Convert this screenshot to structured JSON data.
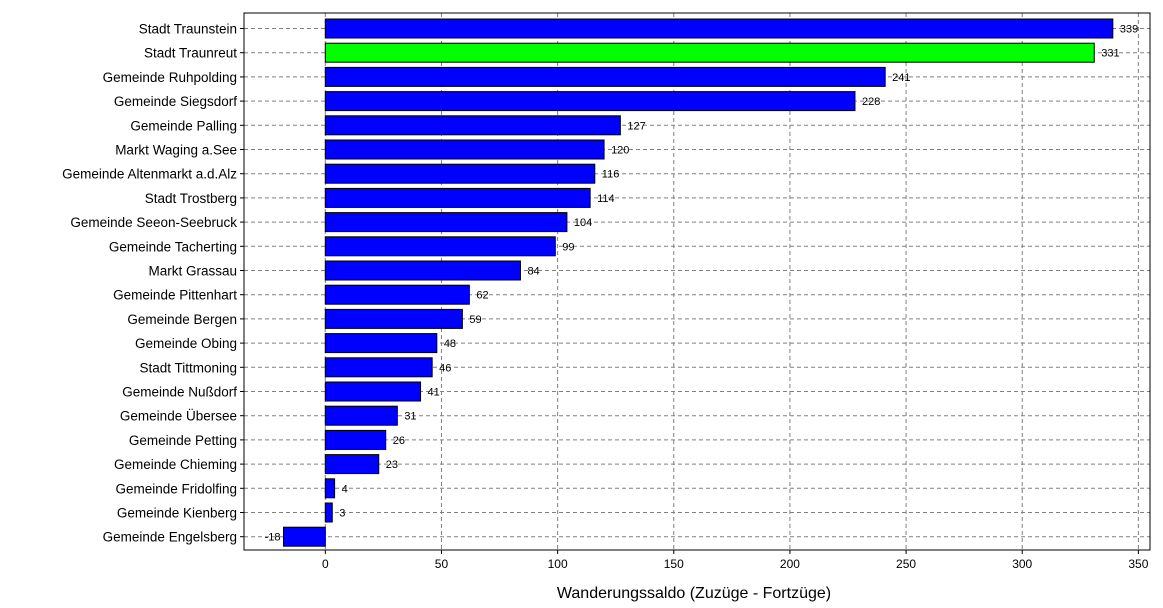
{
  "chart_data": {
    "type": "bar",
    "orientation": "horizontal",
    "title": "",
    "xlabel": "Wanderungssaldo (Zuzüge - Fortzüge)",
    "ylabel": "",
    "xlim": [
      -35,
      355
    ],
    "x_ticks": [
      0,
      50,
      100,
      150,
      200,
      250,
      300,
      350
    ],
    "grid": true,
    "categories": [
      "Stadt Traunstein",
      "Stadt Traunreut",
      "Gemeinde Ruhpolding",
      "Gemeinde Siegsdorf",
      "Gemeinde Palling",
      "Markt Waging a.See",
      "Gemeinde Altenmarkt a.d.Alz",
      "Stadt Trostberg",
      "Gemeinde Seeon-Seebruck",
      "Gemeinde Tacherting",
      "Markt Grassau",
      "Gemeinde Pittenhart",
      "Gemeinde Bergen",
      "Gemeinde Obing",
      "Stadt Tittmoning",
      "Gemeinde Nußdorf",
      "Gemeinde Übersee",
      "Gemeinde Petting",
      "Gemeinde Chieming",
      "Gemeinde Fridolfing",
      "Gemeinde Kienberg",
      "Gemeinde Engelsberg"
    ],
    "values": [
      339,
      331,
      241,
      228,
      127,
      120,
      116,
      114,
      104,
      99,
      84,
      62,
      59,
      48,
      46,
      41,
      31,
      26,
      23,
      4,
      3,
      -18
    ],
    "bar_colors": [
      "#0000ff",
      "#00ff00",
      "#0000ff",
      "#0000ff",
      "#0000ff",
      "#0000ff",
      "#0000ff",
      "#0000ff",
      "#0000ff",
      "#0000ff",
      "#0000ff",
      "#0000ff",
      "#0000ff",
      "#0000ff",
      "#0000ff",
      "#0000ff",
      "#0000ff",
      "#0000ff",
      "#0000ff",
      "#0000ff",
      "#0000ff",
      "#0000ff"
    ],
    "grid_color": "#808080"
  }
}
